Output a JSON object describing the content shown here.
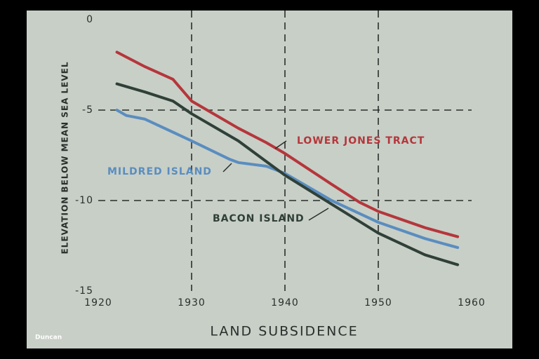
{
  "chart_data": {
    "type": "line",
    "x_label": "LAND SUBSIDENCE",
    "y_label": "ELEVATION BELOW MEAN SEA LEVEL",
    "credit": "Duncan",
    "xlim": [
      1920,
      1960
    ],
    "xticks": [
      1920,
      1930,
      1940,
      1950,
      1960
    ],
    "ylim": [
      -15,
      0
    ],
    "yticks": [
      0,
      -5,
      -10,
      -15
    ],
    "grid": true,
    "series": [
      {
        "name": "LOWER JONES TRACT",
        "color": "#b5363b",
        "x": [
          1922,
          1925,
          1928,
          1930,
          1935,
          1938,
          1940,
          1945,
          1948,
          1950,
          1955,
          1958.5
        ],
        "values": [
          -1.8,
          -2.6,
          -3.3,
          -4.5,
          -6.0,
          -6.8,
          -7.4,
          -9.1,
          -10.1,
          -10.6,
          -11.5,
          -12.0
        ]
      },
      {
        "name": "MILDRED ISLAND",
        "color": "#5a8dbf",
        "x": [
          1922,
          1923,
          1925,
          1930,
          1934,
          1935,
          1938,
          1940,
          1945,
          1950,
          1955,
          1958.5
        ],
        "values": [
          -5.0,
          -5.3,
          -5.5,
          -6.7,
          -7.7,
          -7.9,
          -8.1,
          -8.5,
          -10.0,
          -11.2,
          -12.1,
          -12.6
        ]
      },
      {
        "name": "BACON ISLAND",
        "color": "#2f4038",
        "x": [
          1922,
          1925,
          1928,
          1930,
          1935,
          1940,
          1945,
          1950,
          1955,
          1958.5
        ],
        "values": [
          -3.55,
          -4.0,
          -4.5,
          -5.2,
          -6.7,
          -8.6,
          -10.2,
          -11.8,
          -13.0,
          -13.55
        ]
      }
    ]
  }
}
